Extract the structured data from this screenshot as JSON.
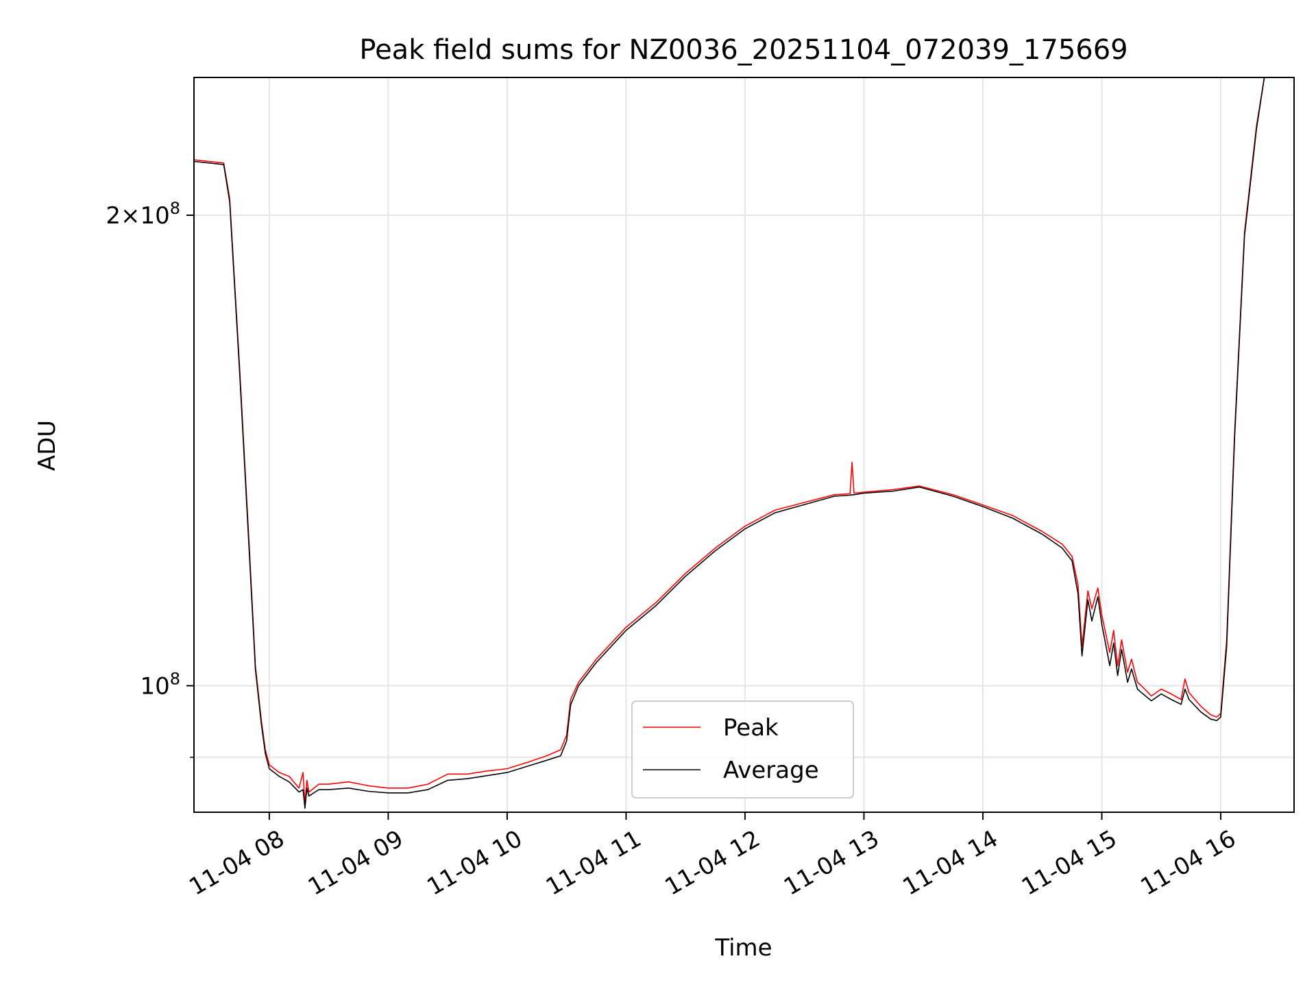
{
  "chart_data": {
    "type": "line",
    "title": "Peak field sums for NZ0036_20251104_072039_175669",
    "xlabel": "Time",
    "ylabel": "ADU",
    "x_ticks": [
      "11-04 08",
      "11-04 09",
      "11-04 10",
      "11-04 11",
      "11-04 12",
      "11-04 13",
      "11-04 14",
      "11-04 15",
      "11-04 16"
    ],
    "y_ticks": [
      {
        "value": 100000000,
        "mantissa": "",
        "exponent": "8"
      },
      {
        "value": 200000000,
        "mantissa": "2×",
        "exponent": "8"
      }
    ],
    "y_scale": "log",
    "xlim": [
      "2025-11-04 07:22",
      "2025-11-04 16:37"
    ],
    "ylim": [
      83000000,
      245000000
    ],
    "grid": true,
    "legend_position": "lower center",
    "series": [
      {
        "name": "Peak",
        "color": "#ff0000",
        "x": [
          "2025-11-04 07:22",
          "2025-11-04 07:37",
          "2025-11-04 07:40",
          "2025-11-04 07:45",
          "2025-11-04 07:50",
          "2025-11-04 07:53",
          "2025-11-04 07:56",
          "2025-11-04 07:58",
          "2025-11-04 08:00",
          "2025-11-04 08:05",
          "2025-11-04 08:10",
          "2025-11-04 08:15",
          "2025-11-04 08:17",
          "2025-11-04 08:18",
          "2025-11-04 08:19",
          "2025-11-04 08:20",
          "2025-11-04 08:25",
          "2025-11-04 08:30",
          "2025-11-04 08:40",
          "2025-11-04 08:50",
          "2025-11-04 09:00",
          "2025-11-04 09:10",
          "2025-11-04 09:20",
          "2025-11-04 09:30",
          "2025-11-04 09:40",
          "2025-11-04 09:50",
          "2025-11-04 10:00",
          "2025-11-04 10:10",
          "2025-11-04 10:20",
          "2025-11-04 10:27",
          "2025-11-04 10:30",
          "2025-11-04 10:32",
          "2025-11-04 10:36",
          "2025-11-04 10:45",
          "2025-11-04 11:00",
          "2025-11-04 11:15",
          "2025-11-04 11:30",
          "2025-11-04 11:45",
          "2025-11-04 12:00",
          "2025-11-04 12:15",
          "2025-11-04 12:30",
          "2025-11-04 12:45",
          "2025-11-04 12:53",
          "2025-11-04 12:54",
          "2025-11-04 12:55",
          "2025-11-04 13:00",
          "2025-11-04 13:15",
          "2025-11-04 13:28",
          "2025-11-04 13:45",
          "2025-11-04 14:00",
          "2025-11-04 14:15",
          "2025-11-04 14:30",
          "2025-11-04 14:40",
          "2025-11-04 14:45",
          "2025-11-04 14:48",
          "2025-11-04 14:50",
          "2025-11-04 14:53",
          "2025-11-04 14:55",
          "2025-11-04 14:58",
          "2025-11-04 15:00",
          "2025-11-04 15:04",
          "2025-11-04 15:06",
          "2025-11-04 15:08",
          "2025-11-04 15:10",
          "2025-11-04 15:13",
          "2025-11-04 15:15",
          "2025-11-04 15:18",
          "2025-11-04 15:20",
          "2025-11-04 15:25",
          "2025-11-04 15:30",
          "2025-11-04 15:35",
          "2025-11-04 15:40",
          "2025-11-04 15:42",
          "2025-11-04 15:44",
          "2025-11-04 15:50",
          "2025-11-04 15:55",
          "2025-11-04 15:58",
          "2025-11-04 16:00",
          "2025-11-04 16:03",
          "2025-11-04 16:07",
          "2025-11-04 16:12",
          "2025-11-04 16:18",
          "2025-11-04 16:22",
          "2025-11-04 16:25"
        ],
        "values": [
          217000000,
          216000000,
          205000000,
          160000000,
          122000000,
          103000000,
          95000000,
          91000000,
          89000000,
          88000000,
          87500000,
          86000000,
          88000000,
          84000000,
          87000000,
          85500000,
          86500000,
          86500000,
          86800000,
          86300000,
          86000000,
          86000000,
          86500000,
          87800000,
          87800000,
          88200000,
          88500000,
          89300000,
          90200000,
          91000000,
          93000000,
          98000000,
          100500000,
          104000000,
          109000000,
          113000000,
          118000000,
          122500000,
          126500000,
          129500000,
          131000000,
          132500000,
          132700000,
          139000000,
          132800000,
          133000000,
          133500000,
          134200000,
          132500000,
          130500000,
          128500000,
          125500000,
          123200000,
          121000000,
          116000000,
          106000000,
          115000000,
          112000000,
          115500000,
          111000000,
          105000000,
          108500000,
          103000000,
          107000000,
          102000000,
          104000000,
          100500000,
          100000000,
          98500000,
          99500000,
          98800000,
          98000000,
          101000000,
          99000000,
          97000000,
          95800000,
          95500000,
          96000000,
          107000000,
          145000000,
          195000000,
          228000000,
          245000000,
          245000000
        ]
      },
      {
        "name": "Average",
        "color": "#000000",
        "x": [
          "2025-11-04 07:22",
          "2025-11-04 07:37",
          "2025-11-04 07:40",
          "2025-11-04 07:45",
          "2025-11-04 07:50",
          "2025-11-04 07:53",
          "2025-11-04 07:56",
          "2025-11-04 07:58",
          "2025-11-04 08:00",
          "2025-11-04 08:05",
          "2025-11-04 08:10",
          "2025-11-04 08:15",
          "2025-11-04 08:17",
          "2025-11-04 08:18",
          "2025-11-04 08:19",
          "2025-11-04 08:20",
          "2025-11-04 08:25",
          "2025-11-04 08:30",
          "2025-11-04 08:40",
          "2025-11-04 08:50",
          "2025-11-04 09:00",
          "2025-11-04 09:10",
          "2025-11-04 09:20",
          "2025-11-04 09:30",
          "2025-11-04 09:40",
          "2025-11-04 09:50",
          "2025-11-04 10:00",
          "2025-11-04 10:10",
          "2025-11-04 10:20",
          "2025-11-04 10:27",
          "2025-11-04 10:30",
          "2025-11-04 10:32",
          "2025-11-04 10:36",
          "2025-11-04 10:45",
          "2025-11-04 11:00",
          "2025-11-04 11:15",
          "2025-11-04 11:30",
          "2025-11-04 11:45",
          "2025-11-04 12:00",
          "2025-11-04 12:15",
          "2025-11-04 12:30",
          "2025-11-04 12:45",
          "2025-11-04 12:53",
          "2025-11-04 12:54",
          "2025-11-04 12:55",
          "2025-11-04 13:00",
          "2025-11-04 13:15",
          "2025-11-04 13:28",
          "2025-11-04 13:45",
          "2025-11-04 14:00",
          "2025-11-04 14:15",
          "2025-11-04 14:30",
          "2025-11-04 14:40",
          "2025-11-04 14:45",
          "2025-11-04 14:48",
          "2025-11-04 14:50",
          "2025-11-04 14:53",
          "2025-11-04 14:55",
          "2025-11-04 14:58",
          "2025-11-04 15:00",
          "2025-11-04 15:04",
          "2025-11-04 15:06",
          "2025-11-04 15:08",
          "2025-11-04 15:10",
          "2025-11-04 15:13",
          "2025-11-04 15:15",
          "2025-11-04 15:18",
          "2025-11-04 15:20",
          "2025-11-04 15:25",
          "2025-11-04 15:30",
          "2025-11-04 15:35",
          "2025-11-04 15:40",
          "2025-11-04 15:42",
          "2025-11-04 15:44",
          "2025-11-04 15:50",
          "2025-11-04 15:55",
          "2025-11-04 15:58",
          "2025-11-04 16:00",
          "2025-11-04 16:03",
          "2025-11-04 16:07",
          "2025-11-04 16:12",
          "2025-11-04 16:18",
          "2025-11-04 16:22",
          "2025-11-04 16:25"
        ],
        "values": [
          216500000,
          215500000,
          204000000,
          159000000,
          121000000,
          102500000,
          94500000,
          90500000,
          88500000,
          87500000,
          86800000,
          85500000,
          85800000,
          83500000,
          86000000,
          85000000,
          85800000,
          85800000,
          86000000,
          85600000,
          85400000,
          85400000,
          85800000,
          87000000,
          87200000,
          87600000,
          88000000,
          88800000,
          89600000,
          90200000,
          92200000,
          97200000,
          100000000,
          103500000,
          108500000,
          112500000,
          117500000,
          122000000,
          126000000,
          129000000,
          130600000,
          132200000,
          132400000,
          132500000,
          132500000,
          132800000,
          133200000,
          134000000,
          132200000,
          130200000,
          128000000,
          125000000,
          122500000,
          120200000,
          114500000,
          104500000,
          113500000,
          110000000,
          114000000,
          109500000,
          103000000,
          106500000,
          101500000,
          105500000,
          100500000,
          102500000,
          99500000,
          99000000,
          97800000,
          98800000,
          98000000,
          97300000,
          99500000,
          98000000,
          96200000,
          95200000,
          95000000,
          95500000,
          106000000,
          144000000,
          194000000,
          227000000,
          245000000,
          245000000
        ]
      }
    ]
  }
}
